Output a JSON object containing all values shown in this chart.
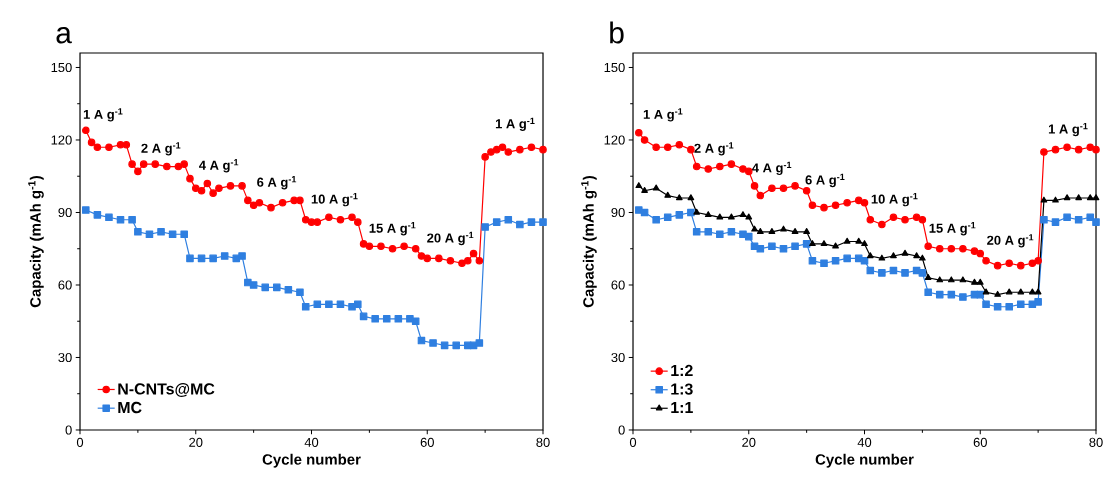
{
  "chart_data": [
    {
      "type": "line",
      "title": "a",
      "xlabel": "Cycle number",
      "ylabel": "Capacity (mAh g$^{-1}$)",
      "xlim": [
        0,
        80
      ],
      "ylim": [
        0,
        156
      ],
      "xticks": [
        0,
        20,
        40,
        60,
        80
      ],
      "yticks": [
        0,
        30,
        60,
        90,
        120,
        150
      ],
      "legend": "bottom left",
      "line_style": "solid",
      "series": [
        {
          "name": "N-CNTs@MC",
          "color": "#ff0000",
          "marker": "circle",
          "x": [
            1,
            2,
            3,
            5,
            7,
            8,
            9,
            10,
            11,
            13,
            15,
            17,
            18,
            19,
            20,
            21,
            22,
            23,
            24,
            26,
            28,
            29,
            30,
            31,
            33,
            35,
            37,
            38,
            39,
            40,
            41,
            43,
            45,
            47,
            48,
            49,
            50,
            52,
            54,
            56,
            58,
            59,
            60,
            62,
            64,
            66,
            67,
            68,
            69,
            70,
            71,
            72,
            73,
            74,
            76,
            78,
            80
          ],
          "values": [
            124,
            119,
            117,
            117,
            118,
            118,
            110,
            107,
            110,
            110,
            109,
            109,
            110,
            104,
            100,
            99,
            102,
            98,
            100,
            101,
            101,
            95,
            93,
            94,
            92,
            94,
            95,
            95,
            87,
            86,
            86,
            88,
            87,
            88,
            86,
            77,
            76,
            76,
            75,
            76,
            75,
            72,
            71,
            71,
            70,
            69,
            70,
            73,
            70,
            113,
            115,
            116,
            117,
            115,
            116,
            117,
            116
          ]
        },
        {
          "name": "MC",
          "color": "#2f7fe0",
          "marker": "square",
          "x": [
            1,
            3,
            5,
            7,
            9,
            10,
            12,
            14,
            16,
            18,
            19,
            21,
            23,
            25,
            27,
            28,
            29,
            30,
            32,
            34,
            36,
            38,
            39,
            41,
            43,
            45,
            47,
            48,
            49,
            51,
            53,
            55,
            57,
            58,
            59,
            61,
            63,
            65,
            67,
            68,
            69,
            70,
            72,
            74,
            76,
            78,
            80
          ],
          "values": [
            91,
            89,
            88,
            87,
            87,
            82,
            81,
            82,
            81,
            81,
            71,
            71,
            71,
            72,
            71,
            72,
            61,
            60,
            59,
            59,
            58,
            57,
            51,
            52,
            52,
            52,
            51,
            52,
            47,
            46,
            46,
            46,
            46,
            45,
            37,
            36,
            35,
            35,
            35,
            35,
            36,
            84,
            86,
            87,
            85,
            86,
            86
          ]
        }
      ],
      "annotations": [
        "1 A g$^{-1}$",
        "2 A g$^{-1}$",
        "4 A g$^{-1}$",
        "6 A g$^{-1}$",
        "10 A g$^{-1}$",
        "15 A g$^{-1}$",
        "20 A g$^{-1}$",
        "1 A g$^{-1}$"
      ]
    },
    {
      "type": "line",
      "title": "b",
      "xlabel": "Cycle number",
      "ylabel": "Capacity (mAh g$^{-1}$)",
      "xlim": [
        0,
        80
      ],
      "ylim": [
        0,
        156
      ],
      "xticks": [
        0,
        20,
        40,
        60,
        80
      ],
      "yticks": [
        0,
        30,
        60,
        90,
        120,
        150
      ],
      "legend": "bottom left",
      "line_style": "solid",
      "x": [
        1,
        2,
        4,
        6,
        8,
        10,
        11,
        13,
        15,
        17,
        19,
        20,
        21,
        22,
        24,
        26,
        28,
        30,
        31,
        33,
        35,
        37,
        39,
        40,
        41,
        43,
        45,
        47,
        49,
        50,
        51,
        53,
        55,
        57,
        59,
        60,
        61,
        63,
        65,
        67,
        69,
        70,
        71,
        73,
        75,
        77,
        79,
        80
      ],
      "series": [
        {
          "name": "1:2",
          "color": "#ff0000",
          "marker": "circle",
          "values": [
            123,
            120,
            117,
            117,
            118,
            116,
            109,
            108,
            109,
            110,
            108,
            107,
            101,
            97,
            100,
            100,
            101,
            99,
            93,
            92,
            93,
            94,
            95,
            94,
            87,
            85,
            88,
            87,
            88,
            87,
            76,
            75,
            75,
            75,
            74,
            73,
            70,
            68,
            69,
            68,
            69,
            70,
            115,
            116,
            117,
            116,
            117,
            116
          ]
        },
        {
          "name": "1:3",
          "color": "#2f7fe0",
          "marker": "square",
          "values": [
            91,
            90,
            87,
            88,
            89,
            90,
            82,
            82,
            81,
            82,
            81,
            80,
            76,
            75,
            76,
            75,
            76,
            77,
            70,
            69,
            70,
            71,
            71,
            70,
            66,
            65,
            66,
            65,
            66,
            65,
            57,
            56,
            56,
            55,
            56,
            56,
            52,
            51,
            51,
            52,
            52,
            53,
            87,
            86,
            88,
            87,
            88,
            86
          ]
        },
        {
          "name": "1:1",
          "color": "#000000",
          "marker": "triangle",
          "values": [
            101,
            99,
            100,
            97,
            96,
            96,
            90,
            89,
            88,
            88,
            89,
            88,
            83,
            82,
            82,
            83,
            82,
            82,
            77,
            77,
            76,
            78,
            78,
            77,
            72,
            71,
            72,
            73,
            72,
            71,
            63,
            62,
            62,
            62,
            61,
            61,
            57,
            56,
            57,
            57,
            57,
            57,
            95,
            95,
            96,
            96,
            96,
            96
          ]
        }
      ],
      "annotations": [
        "1 A g$^{-1}$",
        "2 A g$^{-1}$",
        "4 A g$^{-1}$",
        "6 A g$^{-1}$",
        "10 A g$^{-1}$",
        "15 A g$^{-1}$",
        "20 A g$^{-1}$",
        "1 A g$^{-1}$"
      ]
    }
  ]
}
